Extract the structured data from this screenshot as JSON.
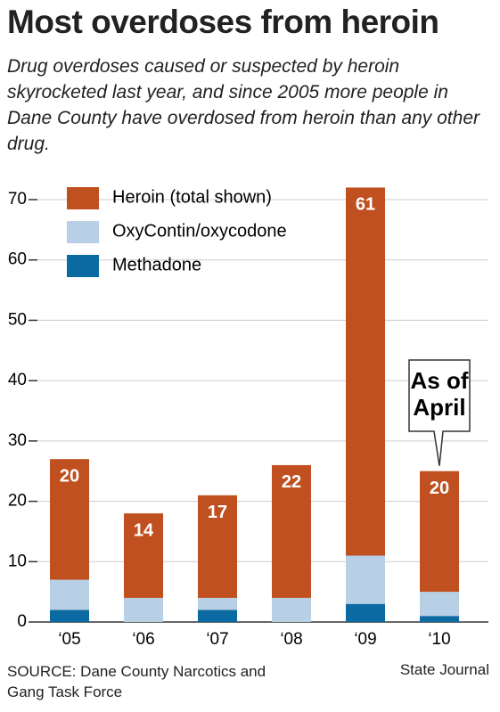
{
  "chart_data": {
    "type": "stacked_bar",
    "title": "Most overdoses from heroin",
    "subtitle": "Drug overdoses caused or suspected by heroin skyrocketed last year, and since 2005 more people in Dane County have overdosed from heroin than any other drug.",
    "categories": [
      "‘05",
      "‘06",
      "‘07",
      "‘08",
      "‘09",
      "‘10"
    ],
    "series": [
      {
        "name": "Heroin (total shown)",
        "color": "#c0501f",
        "values": [
          20,
          14,
          17,
          22,
          61,
          20
        ]
      },
      {
        "name": "OxyContin/oxycodone",
        "color": "#b8d0e6",
        "values": [
          5,
          4,
          2,
          4,
          8,
          4
        ]
      },
      {
        "name": "Methadone",
        "color": "#0a6aa1",
        "values": [
          2,
          0,
          2,
          0,
          3,
          1
        ]
      }
    ],
    "ylim": [
      0,
      70
    ],
    "yticks": [
      0,
      10,
      20,
      30,
      40,
      50,
      60,
      70
    ],
    "grid": true,
    "legend": "top-left",
    "annotation_lines": [
      "As of",
      "April"
    ],
    "source": "SOURCE: Dane County Narcotics and Gang Task Force",
    "credit": "State Journal"
  }
}
